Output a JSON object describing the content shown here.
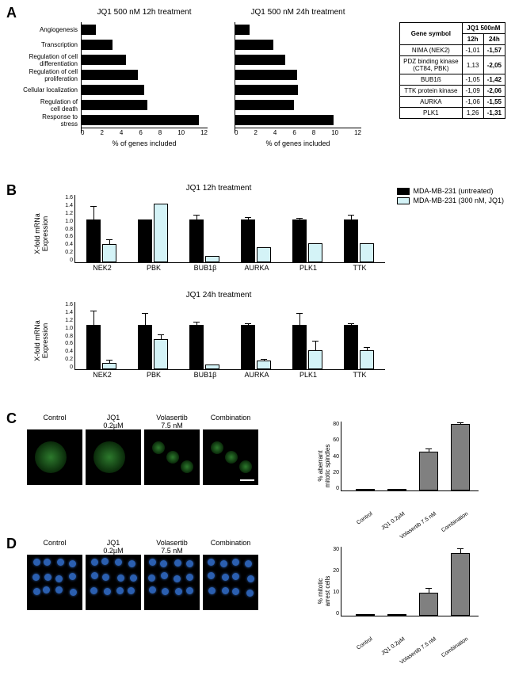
{
  "panelA": {
    "label": "A",
    "chart_left": {
      "title": "JQ1 500 nM 12h treatment",
      "type": "barh",
      "categories": [
        "Angiogenesis",
        "Transcription",
        "Regulation of cell\ndifferentiation",
        "Regulation of cell\nproliferation",
        "Cellular localization",
        "Regulation of\ncell death",
        "Response to\nstress"
      ],
      "values": [
        1.4,
        3.0,
        4.3,
        5.4,
        6.0,
        6.3,
        11.2
      ],
      "xmax": 12,
      "xticks": [
        0,
        2,
        4,
        6,
        8,
        10,
        12
      ],
      "bar_color": "#000000",
      "xlabel": "% of genes included"
    },
    "chart_right": {
      "title": "JQ1 500 nM 24h treatment",
      "type": "barh",
      "values": [
        1.4,
        3.7,
        4.8,
        5.9,
        6.0,
        5.6,
        9.4
      ],
      "xmax": 12,
      "xticks": [
        0,
        2,
        4,
        6,
        8,
        10,
        12
      ],
      "bar_color": "#000000",
      "xlabel": "% of genes included"
    },
    "table": {
      "header_top": "JQ1 500nM",
      "columns": [
        "Gene symbol",
        "12h",
        "24h"
      ],
      "rows": [
        [
          "NIMA (NEK2)",
          "-1,01",
          "-1,57"
        ],
        [
          "PDZ binding kinase\n(CT84, PBK)",
          "1,13",
          "-2,05"
        ],
        [
          "BUB1ß",
          "-1,05",
          "-1,42"
        ],
        [
          "TTK protein kinase",
          "-1,09",
          "-2,06"
        ],
        [
          "AURKA",
          "-1,06",
          "-1,55"
        ],
        [
          "PLK1",
          "1,26",
          "-1,31"
        ]
      ],
      "bold_col_index": 2
    }
  },
  "panelB": {
    "label": "B",
    "ylabel": "X-fold mRNa\nExpression",
    "ymax": 1.6,
    "yticks": [
      "0",
      "0.2",
      "0.4",
      "0.6",
      "0.8",
      "1.0",
      "1.2",
      "1.4",
      "1.6"
    ],
    "categories": [
      "NEK2",
      "PBK",
      "BUB1β",
      "AURKA",
      "PLK1",
      "TTK"
    ],
    "legend": [
      {
        "label": "MDA-MB-231 (untreated)",
        "color": "#000000"
      },
      {
        "label": "MDA-MB-231 (300 nM, JQ1)",
        "color": "#d4f3f7"
      }
    ],
    "chart1": {
      "title": "JQ1 12h treatment",
      "untreated": [
        1.0,
        1.0,
        1.0,
        1.0,
        1.0,
        1.0
      ],
      "untreated_err": [
        0.3,
        0.0,
        0.1,
        0.05,
        0.02,
        0.1
      ],
      "treated": [
        0.42,
        1.38,
        0.15,
        0.35,
        0.45,
        0.45
      ],
      "treated_err": [
        0.1,
        0.0,
        0.0,
        0.0,
        0.0,
        0.0
      ]
    },
    "chart2": {
      "title": "JQ1 24h treatment",
      "untreated": [
        1.05,
        1.05,
        1.05,
        1.05,
        1.05,
        1.05
      ],
      "untreated_err": [
        0.3,
        0.25,
        0.05,
        0.02,
        0.25,
        0.02
      ],
      "treated": [
        0.15,
        0.7,
        0.12,
        0.2,
        0.45,
        0.45
      ],
      "treated_err": [
        0.05,
        0.1,
        0.0,
        0.02,
        0.2,
        0.05
      ]
    }
  },
  "panelC": {
    "label": "C",
    "micro_labels": [
      "Control",
      "JQ1\n0.2µM",
      "Volasertib\n7.5 nM",
      "Combination"
    ],
    "chart": {
      "type": "bar",
      "ylabel": "% aberrant\nmitotic spindles",
      "ymax": 80,
      "yticks": [
        0,
        20,
        40,
        60,
        80
      ],
      "categories": [
        "Control",
        "JQ1 0.2µM",
        "Volasertib 7.5 nM",
        "Combination"
      ],
      "values": [
        0,
        0,
        45,
        76
      ],
      "errors": [
        0,
        0,
        2,
        1
      ],
      "bar_color": "#808080"
    }
  },
  "panelD": {
    "label": "D",
    "micro_labels": [
      "Control",
      "JQ1\n0.2µM",
      "Volasertib\n7.5 nM",
      "Combination"
    ],
    "chart": {
      "type": "bar",
      "ylabel": "% mitotic\narrest cells",
      "ymax": 30,
      "yticks": [
        0,
        10,
        20,
        30
      ],
      "categories": [
        "Control",
        "JQ1 0.2µM",
        "Volasertib 7.5 nM",
        "Combination"
      ],
      "values": [
        0,
        0,
        10,
        27
      ],
      "errors": [
        0,
        0,
        1.5,
        1.5
      ],
      "bar_color": "#808080"
    }
  },
  "colors": {
    "black": "#000000",
    "cyan": "#d4f3f7",
    "gray": "#808080",
    "cell_green": "#2d7a2d",
    "cell_blue": "#2b5fb0"
  }
}
